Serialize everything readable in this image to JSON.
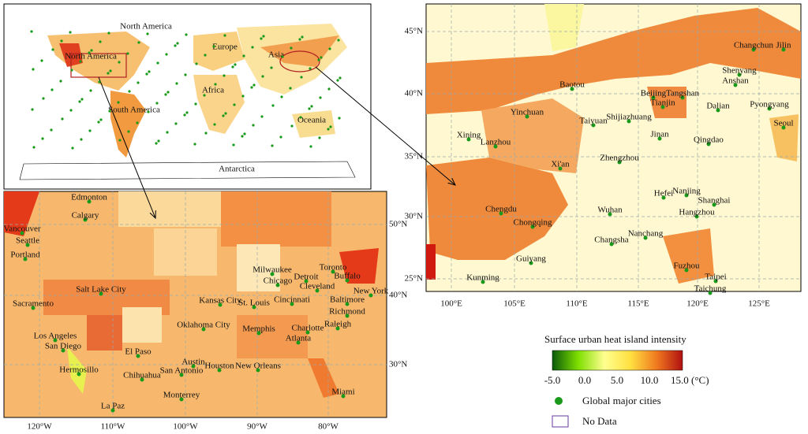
{
  "world": {
    "labels": [
      "North America",
      "North America",
      "Europe",
      "Asia",
      "Africa",
      "South America",
      "Oceania",
      "Antarctica"
    ]
  },
  "north_america": {
    "cities": [
      "Edmonton",
      "Calgary",
      "Vancouver",
      "Seattle",
      "Portland",
      "Sacramento",
      "Salt Lake City",
      "Los Angeles",
      "San Diego",
      "El Paso",
      "Hermosillo",
      "Chihuahua",
      "La Paz",
      "Monterrey",
      "San Antonio",
      "Austin",
      "Houston",
      "New Orleans",
      "Oklahoma City",
      "Kansas City",
      "St. Louis",
      "Memphis",
      "Atlanta",
      "Charlotte",
      "Raleigh",
      "Richmond",
      "Baltimore",
      "New York",
      "Buffalo",
      "Toronto",
      "Detroit",
      "Cleveland",
      "Cincinnati",
      "Milwaukee",
      "Chicago",
      "Miami"
    ],
    "lat_ticks": [
      "50°N",
      "40°N",
      "30°N"
    ],
    "lon_ticks": [
      "120°W",
      "110°W",
      "100°W",
      "90°W",
      "80°W"
    ]
  },
  "china": {
    "cities": [
      "Changchun",
      "Jilin",
      "Shenyang",
      "Anshan",
      "Baotou",
      "Beijing",
      "Tangshan",
      "Tianjin",
      "Dalian",
      "Pyongyang",
      "Seoul",
      "Yinchuan",
      "Taiyuan",
      "Shijiazhuang",
      "Xining",
      "Lanzhou",
      "Jinan",
      "Qingdao",
      "Zhengzhou",
      "Xi'an",
      "Hefei",
      "Nanjing",
      "Shanghai",
      "Chengdu",
      "Chongqing",
      "Wuhan",
      "Hangzhou",
      "Changsha",
      "Nanchang",
      "Guiyang",
      "Fuzhou",
      "Kunming",
      "Taipei",
      "Taichung"
    ],
    "lat_ticks": [
      "45°N",
      "40°N",
      "35°N",
      "30°N",
      "25°N"
    ],
    "lon_ticks": [
      "100°E",
      "105°E",
      "110°E",
      "115°E",
      "120°E",
      "125°E"
    ]
  },
  "legend": {
    "title": "Surface urban heat island intensity",
    "ticks": [
      "-5.0",
      "0.0",
      "5.0",
      "10.0",
      "15.0 (°C)"
    ],
    "cities": "Global major cities",
    "no_data": "No Data"
  }
}
